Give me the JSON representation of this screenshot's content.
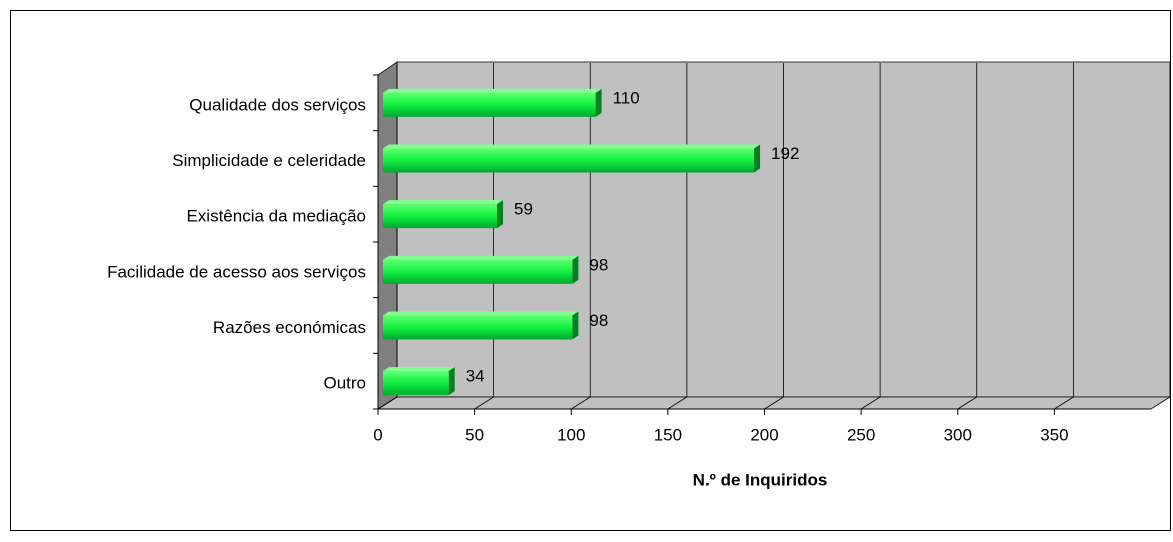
{
  "chart_data": {
    "type": "bar",
    "orientation": "horizontal",
    "x_label": "N.º de Inquiridos",
    "categories": [
      "Qualidade dos serviços",
      "Simplicidade e celeridade",
      "Existência da mediação",
      "Facilidade de acesso aos serviços",
      "Razões económicas",
      "Outro"
    ],
    "values": [
      110,
      192,
      59,
      98,
      98,
      34
    ],
    "color": "#20e040",
    "xlim": [
      0,
      400
    ],
    "xticks": [
      0,
      50,
      100,
      150,
      200,
      250,
      300,
      350
    ],
    "grid": true
  }
}
